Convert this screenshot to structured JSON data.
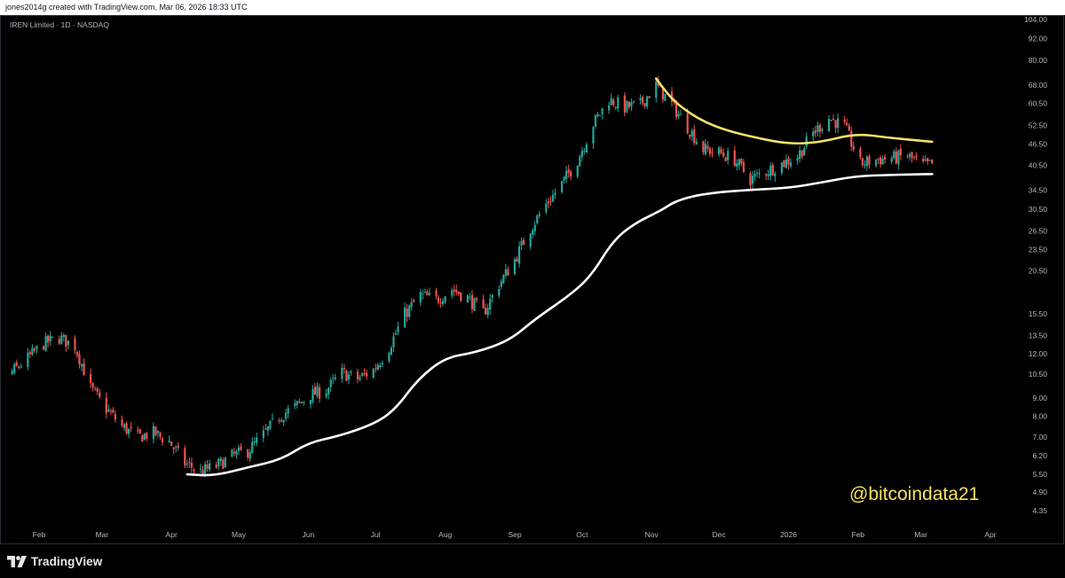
{
  "header": {
    "credit": "jones2014g created with TradingView.com, Mar 06, 2026 18:33 UTC"
  },
  "symbol": {
    "legend": "IREN Limited · 1D · NASDAQ"
  },
  "watermark": {
    "text": "@bitcoindata21"
  },
  "footer": {
    "brand": "TradingView",
    "logo_icon": "tradingview-logo-icon"
  },
  "colors": {
    "background": "#000000",
    "up": "#26a69a",
    "down": "#ef5350",
    "ma_short": "#f5e16a",
    "ma_long": "#ffffff",
    "axis_text": "#b2b5be"
  },
  "chart_data": {
    "type": "candlestick",
    "y_scale": "log",
    "price_ticks": [
      104.0,
      92.0,
      80.0,
      68.0,
      60.5,
      52.5,
      46.5,
      40.5,
      34.5,
      30.5,
      26.5,
      23.5,
      20.5,
      15.5,
      13.5,
      12.0,
      10.5,
      9.0,
      8.0,
      7.0,
      6.2,
      5.5,
      4.9,
      4.35
    ],
    "month_labels": [
      "Feb",
      "Mar",
      "Apr",
      "May",
      "Jun",
      "Jul",
      "Aug",
      "Sep",
      "Oct",
      "Nov",
      "Dec",
      "2026",
      "Feb",
      "Mar",
      "Apr"
    ],
    "month_dates": [
      "2025-02-01",
      "2025-03-01",
      "2025-04-01",
      "2025-05-01",
      "2025-06-01",
      "2025-07-01",
      "2025-08-01",
      "2025-09-01",
      "2025-10-01",
      "2025-11-01",
      "2025-12-01",
      "2026-01-01",
      "2026-02-01",
      "2026-03-01",
      "2026-04-01"
    ],
    "date_range": [
      "2025-01-03",
      "2026-03-06"
    ],
    "close_path": [
      [
        "2025-01-03",
        12.8
      ],
      [
        "2025-01-10",
        11.6
      ],
      [
        "2025-01-17",
        10.3
      ],
      [
        "2025-01-24",
        11.2
      ],
      [
        "2025-02-03",
        12.8
      ],
      [
        "2025-02-10",
        13.3
      ],
      [
        "2025-02-17",
        12.6
      ],
      [
        "2025-02-24",
        9.6
      ],
      [
        "2025-03-03",
        8.4
      ],
      [
        "2025-03-10",
        7.5
      ],
      [
        "2025-03-17",
        7.0
      ],
      [
        "2025-03-24",
        7.2
      ],
      [
        "2025-03-31",
        6.8
      ],
      [
        "2025-04-07",
        5.9
      ],
      [
        "2025-04-14",
        5.6
      ],
      [
        "2025-04-21",
        5.8
      ],
      [
        "2025-04-28",
        6.2
      ],
      [
        "2025-05-05",
        6.4
      ],
      [
        "2025-05-12",
        7.1
      ],
      [
        "2025-05-19",
        8.0
      ],
      [
        "2025-05-26",
        8.5
      ],
      [
        "2025-06-02",
        9.2
      ],
      [
        "2025-06-09",
        9.5
      ],
      [
        "2025-06-16",
        10.6
      ],
      [
        "2025-06-23",
        10.2
      ],
      [
        "2025-06-30",
        10.8
      ],
      [
        "2025-07-07",
        12.5
      ],
      [
        "2025-07-14",
        15.5
      ],
      [
        "2025-07-21",
        17.5
      ],
      [
        "2025-07-28",
        17.0
      ],
      [
        "2025-08-04",
        18.2
      ],
      [
        "2025-08-11",
        17.2
      ],
      [
        "2025-08-18",
        15.6
      ],
      [
        "2025-08-25",
        18.8
      ],
      [
        "2025-09-01",
        22.0
      ],
      [
        "2025-09-08",
        27.0
      ],
      [
        "2025-09-15",
        31.5
      ],
      [
        "2025-09-22",
        36.0
      ],
      [
        "2025-09-29",
        42.0
      ],
      [
        "2025-10-06",
        53.0
      ],
      [
        "2025-10-13",
        62.0
      ],
      [
        "2025-10-20",
        59.0
      ],
      [
        "2025-10-27",
        60.0
      ],
      [
        "2025-11-03",
        68.0
      ],
      [
        "2025-11-10",
        60.0
      ],
      [
        "2025-11-17",
        52.0
      ],
      [
        "2025-11-24",
        45.0
      ],
      [
        "2025-12-01",
        44.0
      ],
      [
        "2025-12-08",
        42.0
      ],
      [
        "2025-12-15",
        37.0
      ],
      [
        "2025-12-22",
        39.0
      ],
      [
        "2026-01-05",
        43.0
      ],
      [
        "2026-01-12",
        50.0
      ],
      [
        "2026-01-19",
        55.0
      ],
      [
        "2026-01-26",
        52.0
      ],
      [
        "2026-02-02",
        41.0
      ],
      [
        "2026-02-09",
        42.0
      ],
      [
        "2026-02-16",
        42.5
      ],
      [
        "2026-02-23",
        43.0
      ],
      [
        "2026-03-02",
        40.5
      ],
      [
        "2026-03-06",
        40.8
      ]
    ],
    "series": [
      {
        "type": "line",
        "values": [
          [
            "2025-04-08",
            5.5
          ],
          [
            "2025-04-20",
            5.45
          ],
          [
            "2025-05-05",
            5.75
          ],
          [
            "2025-05-20",
            6.05
          ],
          [
            "2025-06-01",
            6.75
          ],
          [
            "2025-06-15",
            7.05
          ],
          [
            "2025-07-01",
            7.65
          ],
          [
            "2025-07-10",
            8.4
          ],
          [
            "2025-07-20",
            10.2
          ],
          [
            "2025-08-01",
            11.7
          ],
          [
            "2025-08-15",
            12.1
          ],
          [
            "2025-08-30",
            13.1
          ],
          [
            "2025-09-10",
            15.0
          ],
          [
            "2025-09-25",
            17.4
          ],
          [
            "2025-10-05",
            19.8
          ],
          [
            "2025-10-15",
            25.0
          ],
          [
            "2025-10-25",
            28.0
          ],
          [
            "2025-11-05",
            30.2
          ],
          [
            "2025-11-12",
            32.3
          ],
          [
            "2025-11-25",
            33.8
          ],
          [
            "2025-12-15",
            34.6
          ],
          [
            "2026-01-01",
            35.0
          ],
          [
            "2026-01-15",
            36.2
          ],
          [
            "2026-01-31",
            37.8
          ],
          [
            "2026-02-15",
            38.1
          ],
          [
            "2026-03-06",
            38.3
          ]
        ]
      },
      {
        "type": "line",
        "values": [
          [
            "2025-11-03",
            71.0
          ],
          [
            "2025-11-10",
            62.0
          ],
          [
            "2025-11-20",
            55.5
          ],
          [
            "2025-12-01",
            51.5
          ],
          [
            "2025-12-15",
            48.8
          ],
          [
            "2026-01-01",
            46.5
          ],
          [
            "2026-01-15",
            47.0
          ],
          [
            "2026-01-31",
            49.8
          ],
          [
            "2026-02-15",
            48.4
          ],
          [
            "2026-03-06",
            47.2
          ]
        ]
      }
    ]
  }
}
